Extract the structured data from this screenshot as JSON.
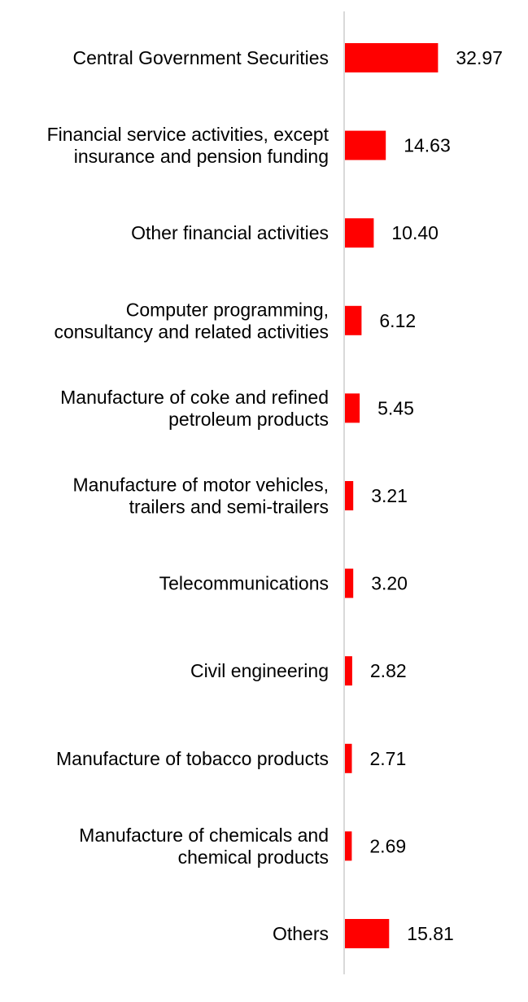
{
  "chart_data": {
    "type": "bar",
    "orientation": "horizontal",
    "title": "",
    "xlabel": "",
    "ylabel": "",
    "categories": [
      [
        "Central Government Securities"
      ],
      [
        "Financial service activities, except",
        "insurance and pension funding"
      ],
      [
        "Other financial activities"
      ],
      [
        "Computer programming,",
        "consultancy and related activities"
      ],
      [
        "Manufacture of coke and refined",
        "petroleum products"
      ],
      [
        "Manufacture of motor vehicles,",
        "trailers and semi-trailers"
      ],
      [
        "Telecommunications"
      ],
      [
        "Civil engineering"
      ],
      [
        "Manufacture of tobacco products"
      ],
      [
        "Manufacture of chemicals and",
        "chemical products"
      ],
      [
        "Others"
      ]
    ],
    "values": [
      32.97,
      14.63,
      10.4,
      6.12,
      5.45,
      3.21,
      3.2,
      2.82,
      2.71,
      2.69,
      15.81
    ],
    "value_labels": [
      "32.97",
      "14.63",
      "10.40",
      "6.12",
      "5.45",
      "3.21",
      "3.20",
      "2.82",
      "2.71",
      "2.69",
      "15.81"
    ],
    "grid": false,
    "legend": "none",
    "colors": {
      "bar": "#ff0000",
      "axis": "#d9d9d9",
      "text": "#000000"
    }
  }
}
